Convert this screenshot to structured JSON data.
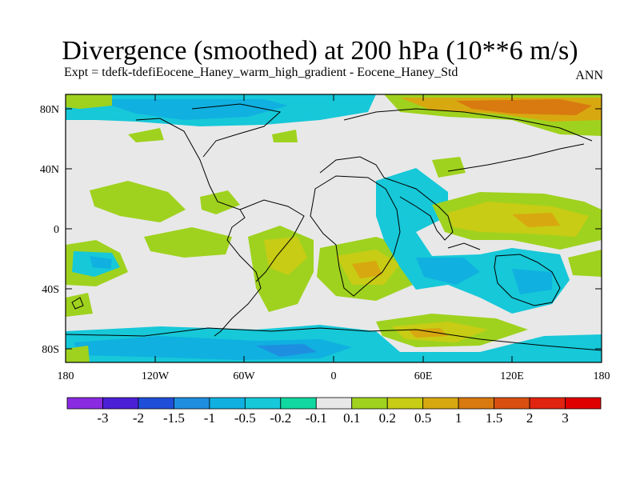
{
  "title": "Divergence (smoothed) at 200 hPa (10**6 m/s)",
  "subtitle": "Expt = tdefk-tdefiEocene_Haney_warm_high_gradient - Eocene_Haney_Std",
  "season": "ANN",
  "axes": {
    "lat_labels": [
      "80N",
      "40N",
      "0",
      "40S",
      "80S"
    ],
    "lon_labels": [
      "180",
      "120W",
      "60W",
      "0",
      "60E",
      "120E",
      "180"
    ]
  },
  "colorbar": {
    "labels": [
      "-3",
      "-2",
      "-1.5",
      "-1",
      "-0.5",
      "-0.2",
      "-0.1",
      "0.1",
      "0.2",
      "0.5",
      "1",
      "1.5",
      "2",
      "3"
    ],
    "colors": [
      "#8a2be2",
      "#4b1fd6",
      "#1f4fd8",
      "#1e8fe0",
      "#10b0e0",
      "#16c8d8",
      "#10d8a0",
      "#e8e8e8",
      "#9fd21e",
      "#c8cc14",
      "#d8a810",
      "#d87a10",
      "#d85010",
      "#e02410",
      "#e00000"
    ]
  }
}
